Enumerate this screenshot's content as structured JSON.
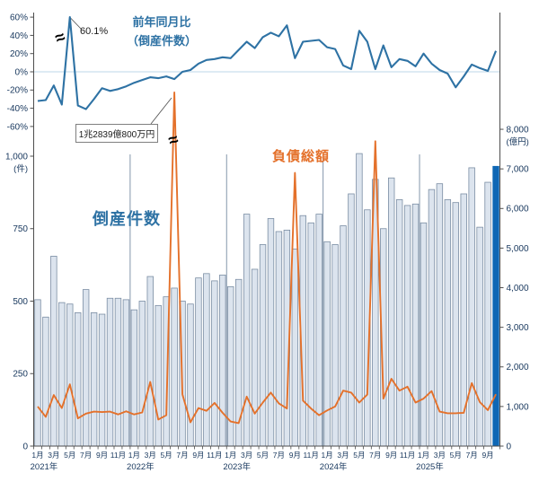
{
  "chart": {
    "titles": {
      "yoy_line1": "前年同月比",
      "yoy_line2": "（倒産件数）",
      "bars_label": "倒産件数",
      "liabilities_label": "負債総額"
    },
    "annotations": {
      "yoy_peak": "60.1%",
      "liabilities_peak": "1兆2839億800万円"
    },
    "axes": {
      "pct_ticks": [
        "60%",
        "40%",
        "20%",
        "0%",
        "-20%",
        "-40%",
        "-60%"
      ],
      "count_ticks": [
        "1,000",
        "750",
        "500",
        "250",
        "0"
      ],
      "count_unit": "(件)",
      "amount_ticks": [
        "8,000",
        "7,000",
        "6,000",
        "5,000",
        "4,000",
        "3,000",
        "2,000",
        "1,000",
        "0"
      ],
      "amount_unit": "(億円)",
      "years": [
        "2021年",
        "2022年",
        "2023年",
        "2024年",
        "2025年"
      ],
      "labeled_months": [
        1,
        3,
        5,
        7,
        9,
        11
      ],
      "month_suffix": "月"
    }
  },
  "chart_data": {
    "type": "combo",
    "x_months": [
      "2021-01",
      "2021-02",
      "2021-03",
      "2021-04",
      "2021-05",
      "2021-06",
      "2021-07",
      "2021-08",
      "2021-09",
      "2021-10",
      "2021-11",
      "2021-12",
      "2022-01",
      "2022-02",
      "2022-03",
      "2022-04",
      "2022-05",
      "2022-06",
      "2022-07",
      "2022-08",
      "2022-09",
      "2022-10",
      "2022-11",
      "2022-12",
      "2023-01",
      "2023-02",
      "2023-03",
      "2023-04",
      "2023-05",
      "2023-06",
      "2023-07",
      "2023-08",
      "2023-09",
      "2023-10",
      "2023-11",
      "2023-12",
      "2024-01",
      "2024-02",
      "2024-03",
      "2024-04",
      "2024-05",
      "2024-06",
      "2024-07",
      "2024-08",
      "2024-09",
      "2024-10",
      "2024-11",
      "2024-12",
      "2025-01",
      "2025-02",
      "2025-03",
      "2025-04",
      "2025-05",
      "2025-06",
      "2025-07",
      "2025-08",
      "2025-09",
      "2025-10"
    ],
    "series": [
      {
        "name": "前年同月比（倒産件数）",
        "type": "line",
        "unit": "%",
        "axis": "upper-left",
        "values": [
          -32,
          -31,
          -15,
          -36,
          60.1,
          -37,
          -41,
          -30,
          -18,
          -21,
          -19,
          -16,
          -12,
          -9,
          -6,
          -7,
          -5,
          -8,
          0,
          2,
          9,
          13,
          14,
          16,
          15,
          24,
          33,
          26,
          38,
          43,
          39,
          51,
          15,
          33,
          34,
          35,
          27,
          25,
          7,
          3,
          45,
          33,
          3,
          29,
          5,
          14,
          12,
          6,
          20,
          9,
          2,
          -2,
          -17,
          -5,
          8,
          4,
          1,
          23
        ]
      },
      {
        "name": "倒産件数",
        "type": "bar",
        "unit": "件",
        "axis": "lower-left",
        "values": [
          505,
          445,
          655,
          495,
          490,
          460,
          540,
          460,
          455,
          510,
          510,
          505,
          470,
          500,
          585,
          485,
          515,
          545,
          500,
          490,
          580,
          595,
          570,
          590,
          550,
          575,
          800,
          610,
          695,
          785,
          740,
          745,
          680,
          795,
          770,
          800,
          705,
          695,
          760,
          870,
          1009,
          815,
          920,
          750,
          925,
          850,
          830,
          835,
          770,
          885,
          905,
          850,
          840,
          870,
          960,
          755,
          910,
          965
        ]
      },
      {
        "name": "負債総額",
        "type": "line",
        "unit": "億円",
        "axis": "right",
        "values": [
          1000,
          740,
          1290,
          960,
          1560,
          700,
          820,
          870,
          860,
          870,
          800,
          880,
          800,
          850,
          1620,
          670,
          780,
          12839,
          1310,
          600,
          960,
          890,
          1090,
          840,
          620,
          580,
          1250,
          820,
          1100,
          1350,
          1080,
          950,
          6900,
          1150,
          950,
          780,
          900,
          1000,
          1400,
          1350,
          1100,
          1300,
          7700,
          1200,
          1700,
          1400,
          1500,
          1100,
          1200,
          1390,
          870,
          830,
          830,
          840,
          1590,
          1110,
          910,
          1310
        ]
      }
    ],
    "upper_axis_range_pct": [
      -60,
      60
    ],
    "lower_left_axis_range": [
      0,
      1000
    ],
    "right_axis_range": [
      0,
      8000
    ],
    "highlight_last_bar": true,
    "axis_breaks": [
      "yoy 2021-05 peak 60.1%",
      "liabilities 2022-06 peak 1兆2839億800万円"
    ]
  },
  "colors": {
    "line_blue": "#2e72a4",
    "bar_fill": "#dce4ee",
    "bar_stroke": "#7a8da3",
    "bar_highlight": "#0f67b5",
    "line_orange": "#e4712b",
    "axis": "#4d4d4d",
    "zero_gridline": "#c9dfed",
    "year_separator": "#8496ab",
    "tick_text": "#17375d",
    "break_glyph": "#000000"
  }
}
